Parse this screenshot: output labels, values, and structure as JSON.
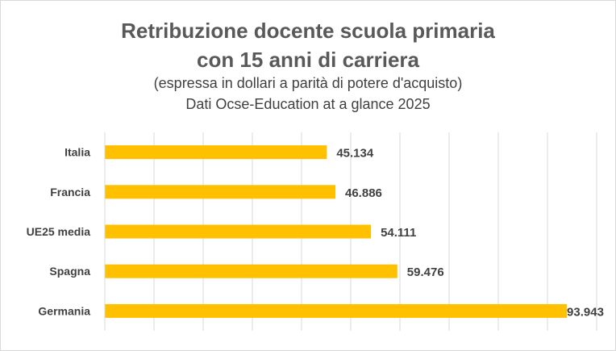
{
  "chart_data": {
    "type": "bar",
    "orientation": "horizontal",
    "title": "Retribuzione docente scuola primaria",
    "title_line2": "con 15 anni di carriera",
    "subtitle": "(espressa in dollari a parità di potere d'acquisto)",
    "source": "Dati Ocse-Education at a glance 2025",
    "categories": [
      "Italia",
      "Francia",
      "UE25 media",
      "Spagna",
      "Germania"
    ],
    "values": [
      45134,
      46886,
      54111,
      59476,
      93943
    ],
    "value_labels": [
      "45.134",
      "46.886",
      "54.111",
      "59.476",
      "93.943"
    ],
    "xlim": [
      0,
      100000
    ],
    "grid": true,
    "legend": "none",
    "bar_color": "#ffc000"
  }
}
